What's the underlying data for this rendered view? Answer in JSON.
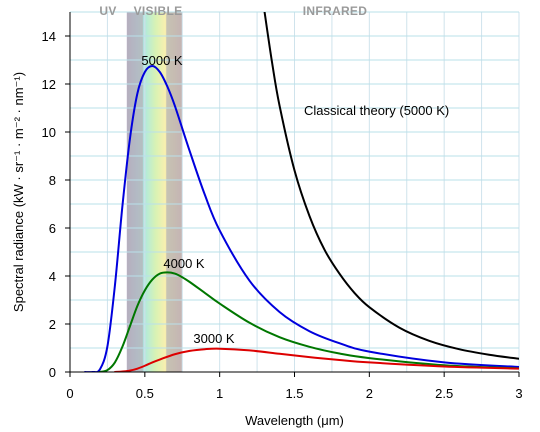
{
  "chart_data": {
    "type": "line",
    "title": "",
    "xlabel": "Wavelength (μm)",
    "ylabel": "Spectral radiance (kW · sr⁻¹ · m⁻² · nm⁻¹)",
    "xlim": [
      0,
      3
    ],
    "ylim": [
      0,
      15
    ],
    "x_ticks": [
      0,
      0.5,
      1,
      1.5,
      2,
      2.5,
      3
    ],
    "x_tick_labels": [
      "0",
      "0.5",
      "1",
      "1.5",
      "2",
      "2.5",
      "3"
    ],
    "y_ticks": [
      0,
      2,
      4,
      6,
      8,
      10,
      12,
      14
    ],
    "y_tick_labels": [
      "0",
      "2",
      "4",
      "6",
      "8",
      "10",
      "12",
      "14"
    ],
    "grid": true,
    "regions": [
      {
        "label": "UV",
        "x_range": [
          0,
          0.38
        ]
      },
      {
        "label": "VISIBLE",
        "x_range": [
          0.38,
          0.75
        ]
      },
      {
        "label": "INFRARED",
        "x_range": [
          0.75,
          3
        ]
      }
    ],
    "series": [
      {
        "name": "5000 K",
        "color": "#0000dd",
        "x": [
          0.1,
          0.15,
          0.2,
          0.25,
          0.3,
          0.35,
          0.4,
          0.45,
          0.5,
          0.55,
          0.6,
          0.65,
          0.7,
          0.8,
          0.9,
          1.0,
          1.2,
          1.4,
          1.6,
          1.8,
          2.0,
          2.5,
          3.0
        ],
        "y": [
          0,
          0.0,
          0.11,
          1.07,
          3.6,
          6.9,
          9.7,
          11.6,
          12.5,
          12.75,
          12.5,
          11.9,
          11.1,
          9.2,
          7.4,
          5.9,
          3.8,
          2.5,
          1.7,
          1.2,
          0.85,
          0.4,
          0.21
        ]
      },
      {
        "name": "4000 K",
        "color": "#007700",
        "x": [
          0.2,
          0.25,
          0.3,
          0.35,
          0.4,
          0.45,
          0.5,
          0.55,
          0.6,
          0.65,
          0.7,
          0.75,
          0.8,
          0.9,
          1.0,
          1.2,
          1.4,
          1.6,
          1.8,
          2.0,
          2.5,
          3.0
        ],
        "y": [
          0.0,
          0.08,
          0.4,
          1.05,
          1.9,
          2.75,
          3.4,
          3.85,
          4.1,
          4.15,
          4.1,
          3.95,
          3.75,
          3.3,
          2.85,
          2.05,
          1.45,
          1.05,
          0.77,
          0.58,
          0.28,
          0.15
        ]
      },
      {
        "name": "3000 K",
        "color": "#dd0000",
        "x": [
          0.3,
          0.35,
          0.4,
          0.45,
          0.5,
          0.55,
          0.6,
          0.7,
          0.8,
          0.9,
          1.0,
          1.2,
          1.4,
          1.6,
          1.8,
          2.0,
          2.5,
          3.0
        ],
        "y": [
          0.0,
          0.02,
          0.06,
          0.14,
          0.26,
          0.4,
          0.52,
          0.74,
          0.88,
          0.95,
          0.97,
          0.9,
          0.76,
          0.62,
          0.5,
          0.4,
          0.23,
          0.14
        ]
      },
      {
        "name": "Classical theory (5000 K)",
        "color": "#000000",
        "x": [
          1.3,
          1.35,
          1.4,
          1.5,
          1.6,
          1.7,
          1.8,
          1.9,
          2.0,
          2.2,
          2.4,
          2.6,
          2.8,
          3.0
        ],
        "y": [
          15,
          12.9,
          11.1,
          8.4,
          6.5,
          5.1,
          4.1,
          3.3,
          2.7,
          1.85,
          1.3,
          0.95,
          0.72,
          0.55
        ]
      }
    ],
    "annotations": [
      {
        "text": "5000 K",
        "series": "5000 K"
      },
      {
        "text": "4000 K",
        "series": "4000 K"
      },
      {
        "text": "3000 K",
        "series": "3000 K"
      },
      {
        "text": "Classical theory (5000 K)",
        "series": "Classical theory (5000 K)"
      }
    ]
  }
}
